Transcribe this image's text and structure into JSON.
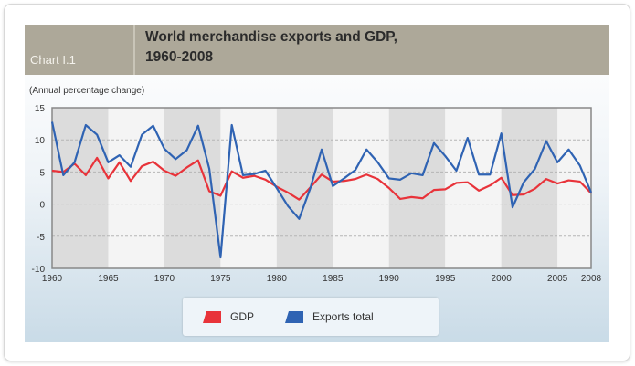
{
  "header": {
    "chart_label": "Chart I.1",
    "title_line1": "World merchandise exports and GDP,",
    "title_line2": "1960-2008"
  },
  "chart_data": {
    "type": "line",
    "title": "World merchandise exports and GDP, 1960-2008",
    "ylabel": "(Annual percentage change)",
    "xlabel": "",
    "xlim": [
      1960,
      2008
    ],
    "ylim": [
      -10,
      15
    ],
    "xticks": [
      "1960",
      "1965",
      "1970",
      "1975",
      "1980",
      "1985",
      "1990",
      "1995",
      "2000",
      "2005",
      "2008"
    ],
    "yticks": [
      "15",
      "10",
      "5",
      "0",
      "-5",
      "-10"
    ],
    "x": [
      1960,
      1961,
      1962,
      1963,
      1964,
      1965,
      1966,
      1967,
      1968,
      1969,
      1970,
      1971,
      1972,
      1973,
      1974,
      1975,
      1976,
      1977,
      1978,
      1979,
      1980,
      1981,
      1982,
      1983,
      1984,
      1985,
      1986,
      1987,
      1988,
      1989,
      1990,
      1991,
      1992,
      1993,
      1994,
      1995,
      1996,
      1997,
      1998,
      1999,
      2000,
      2001,
      2002,
      2003,
      2004,
      2005,
      2006,
      2007,
      2008
    ],
    "series": [
      {
        "name": "GDP",
        "color": "#e8333a",
        "values": [
          5.2,
          5.0,
          6.3,
          4.5,
          7.2,
          4.0,
          6.5,
          3.6,
          5.9,
          6.6,
          5.2,
          4.4,
          5.7,
          6.8,
          2.0,
          1.3,
          5.1,
          4.1,
          4.4,
          3.8,
          2.7,
          1.8,
          0.7,
          2.6,
          4.6,
          3.5,
          3.6,
          3.9,
          4.6,
          3.9,
          2.5,
          0.8,
          1.1,
          0.9,
          2.2,
          2.3,
          3.3,
          3.4,
          2.1,
          2.9,
          4.1,
          1.4,
          1.5,
          2.4,
          3.9,
          3.2,
          3.7,
          3.5,
          1.7
        ]
      },
      {
        "name": "Exports total",
        "color": "#2f63b3",
        "values": [
          12.8,
          4.5,
          6.5,
          12.3,
          10.8,
          6.5,
          7.6,
          5.8,
          10.8,
          12.2,
          8.6,
          7.0,
          8.4,
          12.2,
          5.5,
          -8.3,
          12.3,
          4.5,
          4.7,
          5.2,
          2.5,
          -0.3,
          -2.3,
          2.5,
          8.5,
          2.8,
          4.0,
          5.3,
          8.5,
          6.5,
          4.0,
          3.8,
          4.8,
          4.5,
          9.5,
          7.5,
          5.2,
          10.3,
          4.6,
          4.6,
          11.0,
          -0.5,
          3.4,
          5.5,
          9.8,
          6.5,
          8.5,
          6.0,
          1.8
        ]
      }
    ],
    "grid": true,
    "legend": "bottom-center"
  }
}
